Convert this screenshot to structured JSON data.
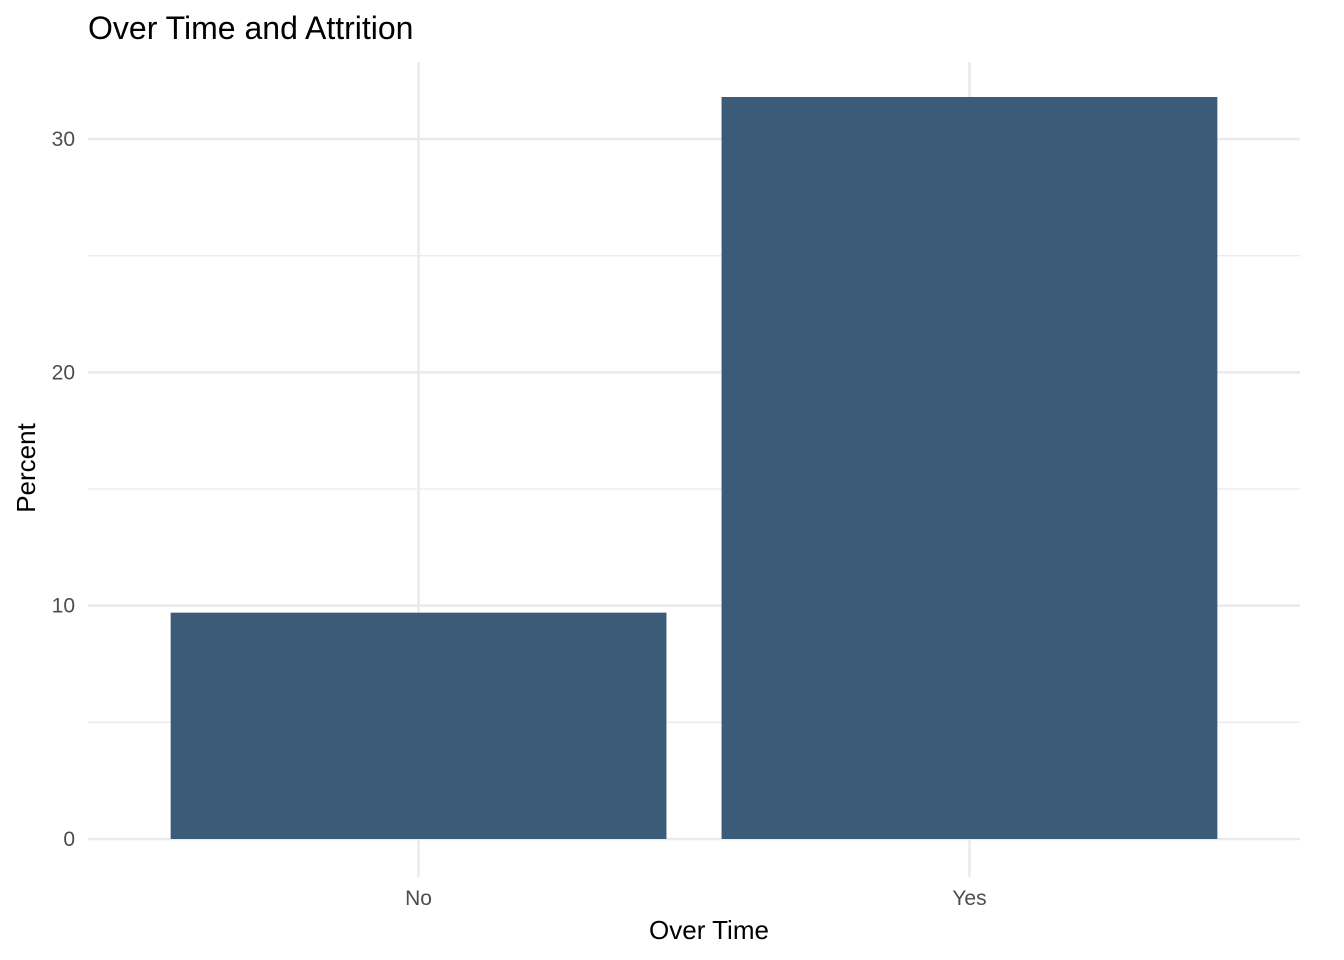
{
  "chart_data": {
    "type": "bar",
    "title": "Over Time and Attrition",
    "xlabel": "Over Time",
    "ylabel": "Percent",
    "categories": [
      "No",
      "Yes"
    ],
    "values": [
      9.7,
      31.8
    ],
    "ylim": [
      0,
      33.3
    ],
    "yticks": [
      0,
      10,
      20,
      30
    ],
    "yticks_minor": [
      5,
      15,
      25
    ],
    "grid": true,
    "legend": "none",
    "bar_color": "#3b5b78",
    "grid_color": "#ebebeb"
  }
}
